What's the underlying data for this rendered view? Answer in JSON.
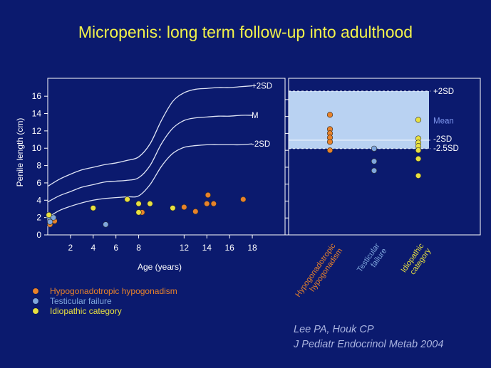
{
  "slide": {
    "title": "Micropenis: long term follow-up into adulthood",
    "citation_line1": "Lee PA, Houk CP",
    "citation_line2": "J Pediatr Endocrinol Metab 2004"
  },
  "colors": {
    "background": "#0b1a6e",
    "hypogonadotropic": "#e8822a",
    "testicular": "#7fa6dc",
    "idiopathic": "#e8e040",
    "normal_band": "#b9d2f2",
    "curve": "#dfe4f5"
  },
  "legend": [
    {
      "key": "hypogonadotropic",
      "label": "Hypogonadotropic hypogonadism",
      "color": "#e8822a"
    },
    {
      "key": "testicular",
      "label": "Testicular failure",
      "color": "#7fa6dc"
    },
    {
      "key": "idiopathic",
      "label": "Idiopathic category",
      "color": "#e8e040"
    }
  ],
  "chart_data": [
    {
      "type": "scatter",
      "xlabel": "Age (years)",
      "ylabel": "Penile length (cm)",
      "xlim": [
        0,
        19
      ],
      "ylim": [
        0,
        17
      ],
      "x_ticks": [
        2,
        4,
        6,
        8,
        12,
        14,
        16,
        18
      ],
      "y_ticks": [
        0,
        2,
        4,
        6,
        8,
        10,
        12,
        14,
        16
      ],
      "curve_labels": [
        "+2SD",
        "M",
        "-2SD"
      ],
      "reference_curves": [
        {
          "name": "+2SD",
          "points": [
            [
              0,
              5.6
            ],
            [
              1,
              6.4
            ],
            [
              2,
              7.0
            ],
            [
              3,
              7.5
            ],
            [
              4,
              7.8
            ],
            [
              5,
              8.1
            ],
            [
              6,
              8.3
            ],
            [
              7,
              8.6
            ],
            [
              8,
              9.0
            ],
            [
              9,
              10.5
            ],
            [
              10,
              13.2
            ],
            [
              11,
              15.4
            ],
            [
              12,
              16.4
            ],
            [
              13,
              16.8
            ],
            [
              14,
              16.9
            ],
            [
              15,
              17.0
            ],
            [
              16,
              17.0
            ],
            [
              17,
              17.1
            ],
            [
              18,
              17.2
            ]
          ]
        },
        {
          "name": "M",
          "points": [
            [
              0,
              3.8
            ],
            [
              1,
              4.5
            ],
            [
              2,
              5.0
            ],
            [
              3,
              5.5
            ],
            [
              4,
              5.8
            ],
            [
              5,
              6.1
            ],
            [
              6,
              6.2
            ],
            [
              7,
              6.3
            ],
            [
              8,
              6.6
            ],
            [
              9,
              8.0
            ],
            [
              10,
              10.5
            ],
            [
              11,
              12.3
            ],
            [
              12,
              13.2
            ],
            [
              13,
              13.5
            ],
            [
              14,
              13.6
            ],
            [
              15,
              13.7
            ],
            [
              16,
              13.7
            ],
            [
              17,
              13.8
            ],
            [
              18,
              13.8
            ]
          ]
        },
        {
          "name": "-2SD",
          "points": [
            [
              0,
              2.0
            ],
            [
              1,
              2.8
            ],
            [
              2,
              3.3
            ],
            [
              3,
              3.7
            ],
            [
              4,
              4.0
            ],
            [
              5,
              4.2
            ],
            [
              6,
              4.3
            ],
            [
              7,
              4.4
            ],
            [
              8,
              4.5
            ],
            [
              9,
              5.8
            ],
            [
              10,
              7.9
            ],
            [
              11,
              9.4
            ],
            [
              12,
              10.1
            ],
            [
              13,
              10.3
            ],
            [
              14,
              10.4
            ],
            [
              15,
              10.4
            ],
            [
              16,
              10.4
            ],
            [
              17,
              10.4
            ],
            [
              18,
              10.5
            ]
          ]
        }
      ],
      "series": [
        {
          "name": "Hypogonadotropic hypogonadism",
          "key": "hypogonadotropic",
          "points": [
            [
              0.6,
              1.6
            ],
            [
              0.2,
              1.2
            ],
            [
              8.3,
              2.6
            ],
            [
              12,
              3.2
            ],
            [
              13,
              2.7
            ],
            [
              14,
              3.6
            ],
            [
              14.1,
              4.6
            ],
            [
              14.6,
              3.6
            ],
            [
              17.2,
              4.1
            ]
          ]
        },
        {
          "name": "Testicular failure",
          "key": "testicular",
          "points": [
            [
              0.1,
              2.1
            ],
            [
              0.5,
              2.0
            ],
            [
              0.2,
              1.5
            ],
            [
              5.1,
              1.2
            ]
          ]
        },
        {
          "name": "Idiopathic category",
          "key": "idiopathic",
          "points": [
            [
              0.1,
              2.3
            ],
            [
              4,
              3.1
            ],
            [
              7,
              4.1
            ],
            [
              8,
              3.6
            ],
            [
              8,
              2.6
            ],
            [
              9,
              3.6
            ],
            [
              11,
              3.1
            ]
          ]
        }
      ]
    },
    {
      "type": "scatter",
      "categories": [
        "Hypogonadotropic hypogonadism",
        "Testicular failure",
        "Idiopathic category"
      ],
      "category_labels": [
        {
          "line1": "Hypogonadotropic",
          "line2": "hypogonadism"
        },
        {
          "line1": "Testicular",
          "line2": "failure"
        },
        {
          "line1": "Idiopathic",
          "line2": "category"
        }
      ],
      "ylim": [
        0,
        17
      ],
      "y_ticks": [
        0,
        2,
        4,
        6,
        8,
        10,
        12,
        14,
        16
      ],
      "reference_lines": [
        {
          "label": "+2SD",
          "value": 17.0
        },
        {
          "label": "Mean",
          "value": 13.6
        },
        {
          "label": "-2SD",
          "value": 11.2
        },
        {
          "label": "-2.5SD",
          "value": 10.2
        }
      ],
      "normal_band": [
        10.2,
        17.0
      ],
      "series": [
        {
          "name": "Hypogonadotropic hypogonadism",
          "key": "hypogonadotropic",
          "values": [
            14.2,
            12.5,
            12.0,
            11.5,
            11.0,
            10.0
          ]
        },
        {
          "name": "Testicular failure",
          "key": "testicular",
          "values": [
            10.2,
            8.7,
            7.6
          ]
        },
        {
          "name": "Idiopathic category",
          "key": "idiopathic",
          "values": [
            13.6,
            11.4,
            10.9,
            10.5,
            10.0,
            9.0,
            7.0
          ]
        }
      ]
    }
  ]
}
